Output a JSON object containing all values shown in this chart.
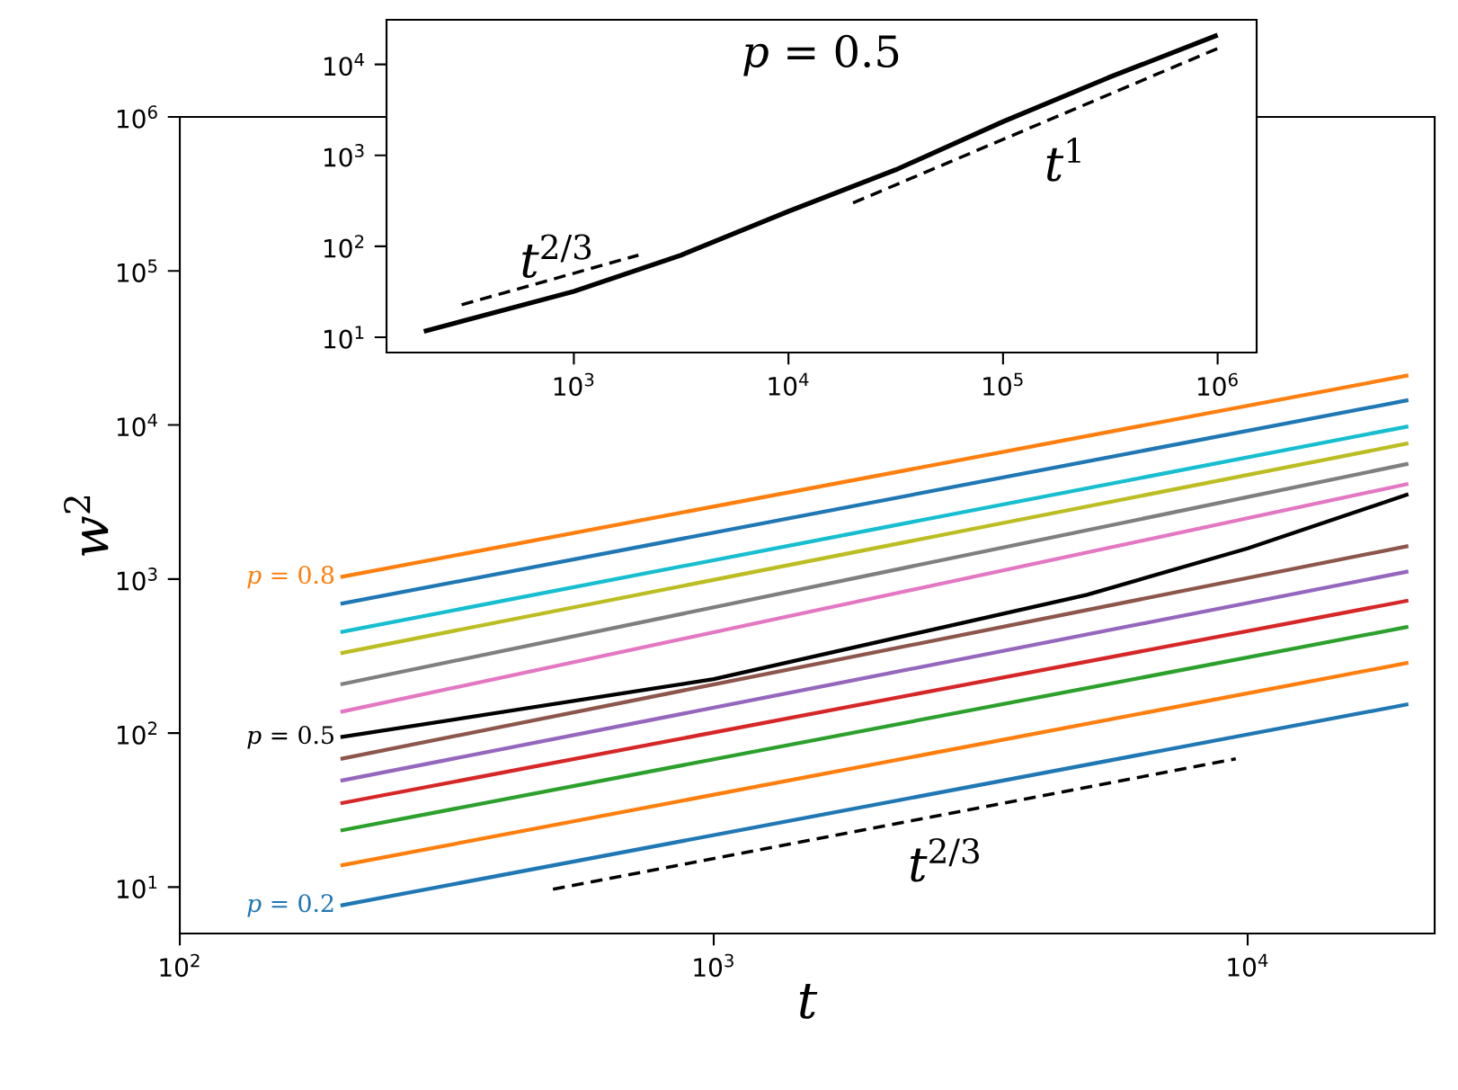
{
  "chart_data": [
    {
      "type": "line",
      "xlabel": "t",
      "ylabel": "*w*$^{2}$",
      "log": "xy",
      "marker": "none",
      "xlim": [
        100,
        22400
      ],
      "ylim": [
        5,
        1000000
      ],
      "xticks": [
        {
          "value": 100,
          "label": "10$^{2}$"
        },
        {
          "value": 1000,
          "label": "10$^{3}$"
        },
        {
          "value": 10000,
          "label": "10$^{4}$"
        }
      ],
      "yticks": [
        {
          "value": 10,
          "label": "10$^{1}$"
        },
        {
          "value": 100,
          "label": "10$^{2}$"
        },
        {
          "value": 1000,
          "label": "10$^{3}$"
        },
        {
          "value": 10000,
          "label": "10$^{4}$"
        },
        {
          "value": 100000,
          "label": "10$^{5}$"
        },
        {
          "value": 1000000,
          "label": "10$^{6}$"
        }
      ],
      "series": [
        {
          "color": "#1f77b4",
          "x": [
            200,
            20000
          ],
          "values": [
            7.6,
            154
          ]
        },
        {
          "color": "#ff7f0e",
          "x": [
            200,
            20000
          ],
          "values": [
            13.8,
            286
          ]
        },
        {
          "color": "#2ca02c",
          "x": [
            200,
            20000
          ],
          "values": [
            23.3,
            490
          ]
        },
        {
          "color": "#d62728",
          "x": [
            200,
            20000
          ],
          "values": [
            35,
            725
          ]
        },
        {
          "color": "#9467bd",
          "x": [
            200,
            20000
          ],
          "values": [
            49,
            1120
          ]
        },
        {
          "color": "#8c564b",
          "x": [
            200,
            20000
          ],
          "values": [
            68,
            1640
          ]
        },
        {
          "color": "#000000",
          "x": [
            200,
            1000,
            5000,
            10000,
            20000
          ],
          "values": [
            94,
            224,
            790,
            1580,
            3550
          ]
        },
        {
          "color": "#e377c2",
          "x": [
            200,
            20000
          ],
          "values": [
            137,
            4150
          ]
        },
        {
          "color": "#7f7f7f",
          "x": [
            200,
            20000
          ],
          "values": [
            207,
            5600
          ]
        },
        {
          "color": "#bcbd22",
          "x": [
            200,
            20000
          ],
          "values": [
            330,
            7600
          ]
        },
        {
          "color": "#17becf",
          "x": [
            200,
            20000
          ],
          "values": [
            452,
            9800
          ]
        },
        {
          "color": "#1f77b4",
          "x": [
            200,
            20000
          ],
          "values": [
            690,
            14500
          ]
        },
        {
          "color": "#ff7f0e",
          "x": [
            200,
            20000
          ],
          "values": [
            1030,
            21000
          ]
        },
        {
          "color": "#000000",
          "line_style": "dashed",
          "x": [
            500,
            9500
          ],
          "values": [
            9.7,
            68
          ]
        }
      ],
      "annotations": [
        "*p* = 0.8",
        "*p* = 0.5",
        "*p* = 0.2",
        "*t*$^{2/3}$"
      ]
    },
    {
      "type": "line",
      "log": "xy",
      "marker": "none",
      "xlim": [
        134,
        1520000
      ],
      "ylim": [
        6.8,
        31000
      ],
      "xticks": [
        {
          "value": 1000,
          "label": "10$^{3}$"
        },
        {
          "value": 10000,
          "label": "10$^{4}$"
        },
        {
          "value": 100000,
          "label": "10$^{5}$"
        },
        {
          "value": 1000000,
          "label": "10$^{6}$"
        }
      ],
      "yticks": [
        {
          "value": 10,
          "label": "10$^{1}$"
        },
        {
          "value": 100,
          "label": "10$^{2}$"
        },
        {
          "value": 1000,
          "label": "10$^{3}$"
        },
        {
          "value": 10000,
          "label": "10$^{4}$"
        }
      ],
      "series": [
        {
          "color": "#000000",
          "x": [
            200,
            1000,
            3160,
            10000,
            31600,
            100000,
            310000,
            1000000
          ],
          "values": [
            11.6,
            32,
            80,
            243,
            694,
            2350,
            7160,
            21000
          ]
        },
        {
          "color": "#000000",
          "line_style": "dashed",
          "x": [
            300,
            2000
          ],
          "values": [
            22.8,
            80
          ]
        },
        {
          "color": "#000000",
          "line_style": "dashed",
          "x": [
            20000,
            1000000
          ],
          "values": [
            300,
            15000
          ]
        }
      ],
      "annotations": [
        "*p* = 0.5",
        "*t*$^{1}$",
        "*t*$^{2/3}$"
      ]
    }
  ]
}
